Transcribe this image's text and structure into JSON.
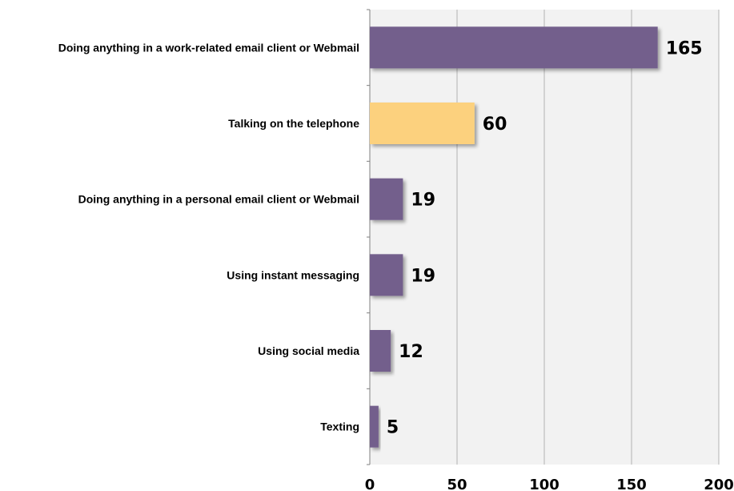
{
  "chart_data": {
    "type": "bar",
    "orientation": "horizontal",
    "categories": [
      "Doing anything in a work-related email client or Webmail",
      "Talking on the telephone",
      "Doing anything in a personal email client or Webmail",
      "Using instant messaging",
      "Using social media",
      "Texting"
    ],
    "values": [
      165,
      60,
      19,
      19,
      12,
      5
    ],
    "data_labels": [
      "165",
      "60",
      "19",
      "19",
      "12",
      "5"
    ],
    "bar_colors": [
      "#735f8c",
      "#fcd17e",
      "#735f8c",
      "#735f8c",
      "#735f8c",
      "#735f8c"
    ],
    "title": "",
    "xlabel": "",
    "ylabel": "",
    "xlim": [
      0,
      200
    ],
    "x_ticks": [
      0,
      50,
      100,
      150,
      200
    ],
    "x_tick_labels": [
      "0",
      "50",
      "100",
      "150",
      "200"
    ],
    "grid": "vertical",
    "legend": "none",
    "plot_background": "#f2f2f2",
    "gridline_color": "#b3b3b3"
  }
}
